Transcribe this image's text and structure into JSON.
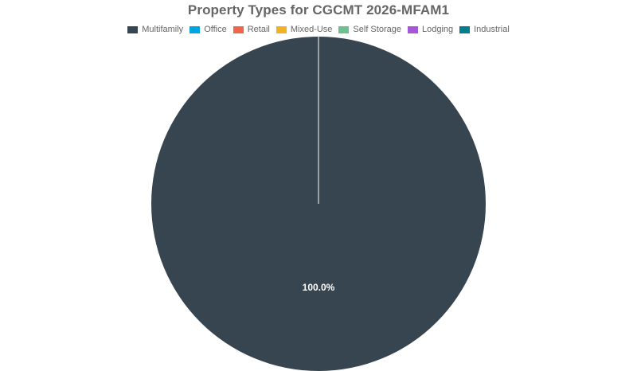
{
  "chart_data": {
    "type": "pie",
    "title": "Property Types for CGCMT 2026-MFAM1",
    "legend_position": "top",
    "categories": [
      "Multifamily",
      "Office",
      "Retail",
      "Mixed-Use",
      "Self Storage",
      "Lodging",
      "Industrial"
    ],
    "values": [
      100.0,
      0,
      0,
      0,
      0,
      0,
      0
    ],
    "colors": [
      "#36454f",
      "#00a5e0",
      "#f0654c",
      "#f3b124",
      "#6cc28f",
      "#a656d8",
      "#037c8d"
    ],
    "data_labels": [
      "100.0%",
      "",
      "",
      "",
      "",
      "",
      ""
    ],
    "label_color": "#ffffff",
    "slice_border_color": "#ffffff"
  }
}
